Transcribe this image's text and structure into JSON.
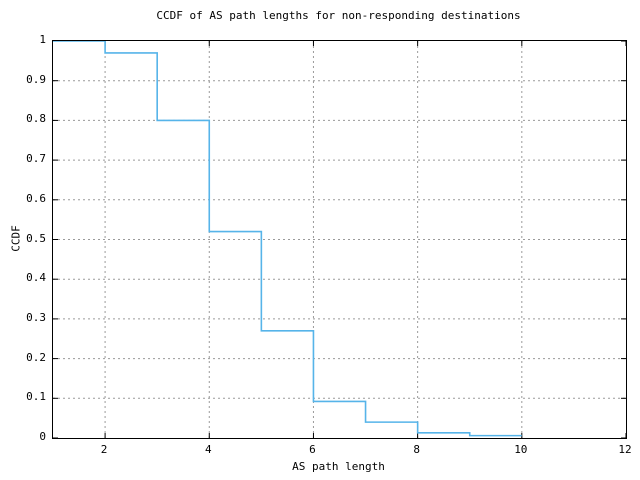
{
  "chart_data": {
    "type": "line",
    "style": "step-ccdf",
    "title": "CCDF of AS path lengths for non-responding destinations",
    "xlabel": "AS path length",
    "ylabel": "CCDF",
    "xlim": [
      1,
      12
    ],
    "ylim": [
      0,
      1
    ],
    "xticks": [
      2,
      4,
      6,
      8,
      10,
      12
    ],
    "xtick_labels": [
      "2",
      "4",
      "6",
      "8",
      "10",
      "12"
    ],
    "yticks": [
      0,
      0.1,
      0.2,
      0.3,
      0.4,
      0.5,
      0.6,
      0.7,
      0.8,
      0.9,
      1
    ],
    "ytick_labels": [
      "0",
      "0.1",
      "0.2",
      "0.3",
      "0.4",
      "0.5",
      "0.6",
      "0.7",
      "0.8",
      "0.9",
      "1"
    ],
    "grid": true,
    "legend_position": "none",
    "grid_color": "#9a9a9a",
    "axis_color": "#000000",
    "background_color": "#ffffff",
    "series": [
      {
        "color": "#56b4e9",
        "step_points": [
          {
            "x": 1,
            "ccdf": 1.0
          },
          {
            "x": 2,
            "ccdf": 0.97
          },
          {
            "x": 3,
            "ccdf": 0.8
          },
          {
            "x": 4,
            "ccdf": 0.52
          },
          {
            "x": 5,
            "ccdf": 0.27
          },
          {
            "x": 6,
            "ccdf": 0.092
          },
          {
            "x": 7,
            "ccdf": 0.04
          },
          {
            "x": 8,
            "ccdf": 0.013
          },
          {
            "x": 9,
            "ccdf": 0.006
          }
        ],
        "end_x": 10
      }
    ]
  }
}
